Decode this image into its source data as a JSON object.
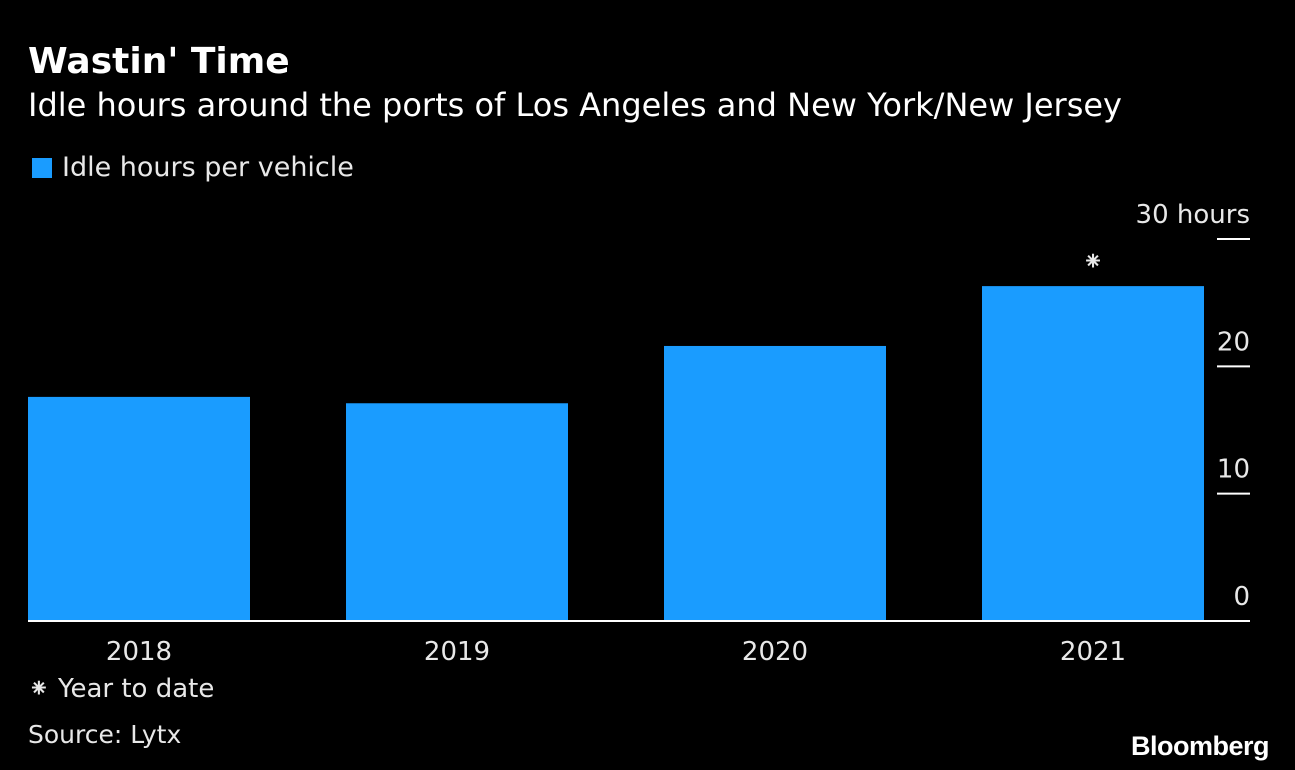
{
  "title": "Wastin' Time",
  "subtitle": "Idle hours around the ports of Los Angeles and New York/New Jersey",
  "footnote": "⁕ Year to date",
  "source": "Source: Lytx",
  "brand": "Bloomberg",
  "colors": {
    "background": "#000000",
    "bar": "#1a9cff",
    "text": "#ffffff",
    "axis": "#ffffff"
  },
  "chart_data": {
    "type": "bar",
    "title": "Wastin' Time",
    "subtitle": "Idle hours around the ports of Los Angeles and New York/New Jersey",
    "categories": [
      "2018",
      "2019",
      "2020",
      "2021"
    ],
    "series": [
      {
        "name": "Idle hours per vehicle",
        "values": [
          17.6,
          17.1,
          21.6,
          26.3
        ]
      }
    ],
    "annotations": [
      {
        "category": "2021",
        "text": "⁕",
        "meaning": "Year to date"
      }
    ],
    "y_ticks": [
      0,
      10,
      20,
      30
    ],
    "y_tick_labels": [
      "0",
      "10",
      "20",
      "30 hours"
    ],
    "y_unit": "hours",
    "ylim": [
      0,
      30
    ],
    "xlabel": "",
    "ylabel": "",
    "legend_position": "top-left",
    "grid": false
  }
}
